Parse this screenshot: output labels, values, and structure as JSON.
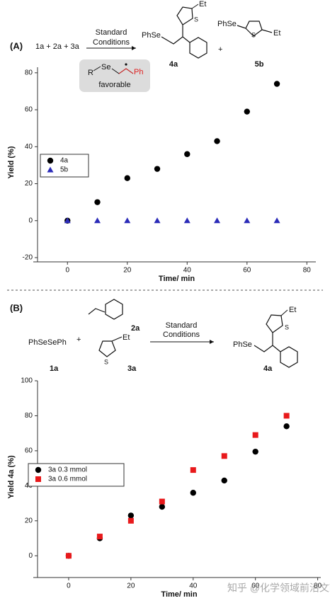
{
  "scheme_a": {
    "label": "(A)",
    "reactants": "1a + 2a + 3a",
    "condition_1": "Standard",
    "condition_2": "Conditions",
    "product_1_group": "PhSe",
    "product_1_substituent": "Et",
    "product_1_heteroatom": "S",
    "product_1_label": "4a",
    "plus": "+",
    "product_2_group": "PhSe",
    "product_2_substituent": "Et",
    "product_2_heteroatom": "S",
    "product_2_label": "5b",
    "intermediate_r": "R",
    "intermediate_se": "Se",
    "intermediate_ph": "Ph",
    "intermediate_note": "favorable"
  },
  "scheme_b": {
    "label": "(B)",
    "reactant_1": "PhSeSePh",
    "plus": "+",
    "reactant_2_label": "2a",
    "reactant_3_substituent": "Et",
    "reactant_3_heteroatom": "S",
    "reactant_3_label": "3a",
    "reactant_1_label": "1a",
    "condition_1": "Standard",
    "condition_2": "Conditions",
    "product_group": "PhSe",
    "product_substituent": "Et",
    "product_heteroatom": "S",
    "product_label": "4a"
  },
  "watermark": "知乎 @化学领域前沿文献",
  "chart_data": [
    {
      "type": "scatter",
      "x_label": "Time/ min",
      "y_label": "Yield (%)",
      "xlim": [
        -10,
        83
      ],
      "ylim": [
        -20,
        83
      ],
      "xticks": [
        0,
        20,
        40,
        60,
        80
      ],
      "yticks": [
        -20,
        0,
        20,
        40,
        60,
        80
      ],
      "legend": "left",
      "series": [
        {
          "name": "4a",
          "color": "#000000",
          "marker": "circle",
          "x": [
            0,
            10,
            20,
            30,
            40,
            50,
            60,
            70
          ],
          "values": [
            0,
            10,
            23,
            28,
            36,
            43,
            59,
            74
          ]
        },
        {
          "name": "5b",
          "color": "#2b2bb8",
          "marker": "triangle",
          "x": [
            0,
            10,
            20,
            30,
            40,
            50,
            60,
            70
          ],
          "values": [
            0,
            0,
            0,
            0,
            0,
            0,
            0,
            0
          ]
        }
      ]
    },
    {
      "type": "scatter",
      "x_label": "Time/ min",
      "y_label": "Yield 4a (%)",
      "xlim": [
        -10,
        81
      ],
      "ylim": [
        -10,
        100
      ],
      "xticks": [
        0,
        20,
        40,
        60,
        80
      ],
      "yticks": [
        0,
        20,
        40,
        60,
        80,
        100
      ],
      "legend": "left",
      "series": [
        {
          "name": "3a 0.3 mmol",
          "color": "#000000",
          "marker": "circle",
          "x": [
            0,
            10,
            20,
            30,
            40,
            50,
            60,
            70
          ],
          "values": [
            0,
            10,
            23,
            28,
            36,
            43,
            59.5,
            74
          ]
        },
        {
          "name": "3a 0.6 mmol",
          "color": "#e8191b",
          "marker": "square",
          "x": [
            0,
            10,
            20,
            30,
            40,
            50,
            60,
            70
          ],
          "values": [
            0,
            11,
            20,
            31,
            49,
            57,
            69,
            80
          ]
        }
      ]
    }
  ]
}
